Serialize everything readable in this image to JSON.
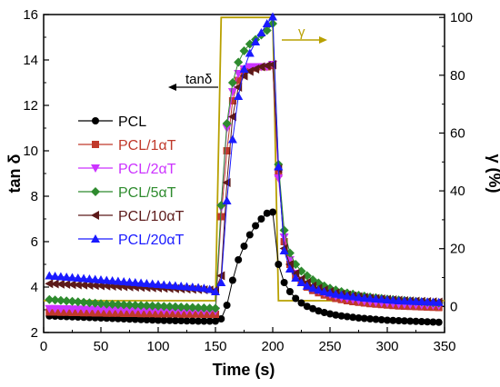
{
  "chart_data": {
    "type": "scatter",
    "xlabel": "Time (s)",
    "ylabel_left": "tan δ",
    "ylabel_right": "γ (%)",
    "xlim": [
      0,
      350
    ],
    "ylim_left": [
      2,
      16
    ],
    "ylim_right": [
      -9,
      101
    ],
    "x_ticks": [
      0,
      50,
      100,
      150,
      200,
      250,
      300,
      350
    ],
    "y_left_ticks": [
      2,
      4,
      6,
      8,
      10,
      12,
      14,
      16
    ],
    "y_right_ticks": [
      0,
      20,
      40,
      60,
      80,
      100
    ],
    "grid": false,
    "legend_position": "left",
    "series": [
      {
        "name": "PCL",
        "axis": "left",
        "color": "#000000",
        "marker": "circle",
        "x": [
          5,
          10,
          15,
          20,
          25,
          30,
          35,
          40,
          45,
          50,
          55,
          60,
          65,
          70,
          75,
          80,
          85,
          90,
          95,
          100,
          105,
          110,
          115,
          120,
          125,
          130,
          135,
          140,
          145,
          150,
          155,
          160,
          165,
          170,
          175,
          180,
          185,
          190,
          195,
          200,
          205,
          210,
          215,
          220,
          225,
          230,
          235,
          240,
          245,
          250,
          255,
          260,
          265,
          270,
          275,
          280,
          285,
          290,
          295,
          300,
          305,
          310,
          315,
          320,
          325,
          330,
          335,
          340,
          345
        ],
        "y": [
          2.73,
          2.72,
          2.71,
          2.7,
          2.69,
          2.68,
          2.67,
          2.66,
          2.65,
          2.64,
          2.63,
          2.62,
          2.61,
          2.6,
          2.59,
          2.58,
          2.57,
          2.56,
          2.55,
          2.54,
          2.53,
          2.53,
          2.52,
          2.52,
          2.51,
          2.51,
          2.5,
          2.5,
          2.5,
          2.5,
          2.6,
          3.2,
          4.3,
          5.2,
          5.8,
          6.3,
          6.7,
          7.0,
          7.25,
          7.3,
          5.0,
          4.2,
          3.8,
          3.5,
          3.3,
          3.15,
          3.05,
          2.95,
          2.88,
          2.82,
          2.77,
          2.73,
          2.7,
          2.67,
          2.64,
          2.62,
          2.6,
          2.58,
          2.56,
          2.54,
          2.53,
          2.52,
          2.51,
          2.5,
          2.49,
          2.48,
          2.47,
          2.46,
          2.45
        ]
      },
      {
        "name": "PCL/1αT",
        "axis": "left",
        "color": "#c0392b",
        "marker": "square",
        "x": [
          5,
          10,
          15,
          20,
          25,
          30,
          35,
          40,
          45,
          50,
          55,
          60,
          65,
          70,
          75,
          80,
          85,
          90,
          95,
          100,
          105,
          110,
          115,
          120,
          125,
          130,
          135,
          140,
          145,
          150,
          155,
          160,
          165,
          170,
          175,
          180,
          185,
          190,
          195,
          200,
          205,
          210,
          215,
          220,
          225,
          230,
          235,
          240,
          245,
          250,
          255,
          260,
          265,
          270,
          275,
          280,
          285,
          290,
          295,
          300,
          305,
          310,
          315,
          320,
          325,
          330,
          335,
          340,
          345
        ],
        "y": [
          2.9,
          2.9,
          2.89,
          2.89,
          2.88,
          2.88,
          2.87,
          2.87,
          2.86,
          2.86,
          2.85,
          2.85,
          2.85,
          2.84,
          2.84,
          2.84,
          2.83,
          2.83,
          2.83,
          2.82,
          2.82,
          2.82,
          2.82,
          2.81,
          2.81,
          2.81,
          2.81,
          2.8,
          2.8,
          2.8,
          7.1,
          10.0,
          12.2,
          13.1,
          13.5,
          13.6,
          13.65,
          13.7,
          13.7,
          13.75,
          9.0,
          6.0,
          5.0,
          4.5,
          4.2,
          4.0,
          3.85,
          3.75,
          3.65,
          3.57,
          3.5,
          3.45,
          3.4,
          3.36,
          3.33,
          3.3,
          3.27,
          3.25,
          3.23,
          3.21,
          3.19,
          3.17,
          3.16,
          3.15,
          3.14,
          3.13,
          3.12,
          3.11,
          3.1
        ]
      },
      {
        "name": "PCL/2αT",
        "axis": "left",
        "color": "#cc33ff",
        "marker": "triangle-down",
        "x": [
          5,
          10,
          15,
          20,
          25,
          30,
          35,
          40,
          45,
          50,
          55,
          60,
          65,
          70,
          75,
          80,
          85,
          90,
          95,
          100,
          105,
          110,
          115,
          120,
          125,
          130,
          135,
          140,
          145,
          150,
          155,
          160,
          165,
          170,
          175,
          180,
          185,
          190,
          195,
          200,
          205,
          210,
          215,
          220,
          225,
          230,
          235,
          240,
          245,
          250,
          255,
          260,
          265,
          270,
          275,
          280,
          285,
          290,
          295,
          300,
          305,
          310,
          315,
          320,
          325,
          330,
          335,
          340,
          345
        ],
        "y": [
          3.05,
          3.05,
          3.04,
          3.04,
          3.03,
          3.03,
          3.02,
          3.02,
          3.01,
          3.01,
          3.0,
          3.0,
          3.0,
          2.99,
          2.99,
          2.99,
          2.98,
          2.98,
          2.98,
          2.97,
          2.97,
          2.97,
          2.97,
          2.96,
          2.96,
          2.96,
          2.96,
          2.95,
          2.95,
          2.95,
          7.5,
          11.0,
          12.6,
          13.4,
          13.6,
          13.7,
          13.7,
          13.7,
          13.7,
          13.8,
          8.8,
          6.2,
          5.2,
          4.6,
          4.3,
          4.1,
          3.95,
          3.85,
          3.75,
          3.67,
          3.6,
          3.54,
          3.49,
          3.45,
          3.41,
          3.38,
          3.35,
          3.33,
          3.31,
          3.29,
          3.27,
          3.25,
          3.24,
          3.23,
          3.22,
          3.21,
          3.2,
          3.19,
          3.18
        ]
      },
      {
        "name": "PCL/5αT",
        "axis": "left",
        "color": "#2e8b2e",
        "marker": "diamond",
        "x": [
          5,
          10,
          15,
          20,
          25,
          30,
          35,
          40,
          45,
          50,
          55,
          60,
          65,
          70,
          75,
          80,
          85,
          90,
          95,
          100,
          105,
          110,
          115,
          120,
          125,
          130,
          135,
          140,
          145,
          150,
          155,
          160,
          165,
          170,
          175,
          180,
          185,
          190,
          195,
          200,
          205,
          210,
          215,
          220,
          225,
          230,
          235,
          240,
          245,
          250,
          255,
          260,
          265,
          270,
          275,
          280,
          285,
          290,
          295,
          300,
          305,
          310,
          315,
          320,
          325,
          330,
          335,
          340,
          345
        ],
        "y": [
          3.45,
          3.43,
          3.41,
          3.39,
          3.37,
          3.35,
          3.33,
          3.31,
          3.29,
          3.27,
          3.25,
          3.24,
          3.23,
          3.22,
          3.21,
          3.2,
          3.19,
          3.18,
          3.17,
          3.16,
          3.15,
          3.14,
          3.13,
          3.12,
          3.11,
          3.1,
          3.09,
          3.08,
          3.07,
          3.06,
          7.6,
          11.2,
          13.0,
          13.9,
          14.4,
          14.7,
          14.9,
          15.1,
          15.3,
          15.6,
          9.4,
          6.5,
          5.5,
          5.0,
          4.7,
          4.5,
          4.32,
          4.18,
          4.05,
          3.95,
          3.87,
          3.8,
          3.74,
          3.69,
          3.64,
          3.6,
          3.56,
          3.53,
          3.5,
          3.47,
          3.45,
          3.43,
          3.41,
          3.39,
          3.37,
          3.35,
          3.33,
          3.31,
          3.3
        ]
      },
      {
        "name": "PCL/10αT",
        "axis": "left",
        "color": "#5c1a1a",
        "marker": "triangle-left",
        "x": [
          5,
          10,
          15,
          20,
          25,
          30,
          35,
          40,
          45,
          50,
          55,
          60,
          65,
          70,
          75,
          80,
          85,
          90,
          95,
          100,
          105,
          110,
          115,
          120,
          125,
          130,
          135,
          140,
          145,
          150,
          155,
          160,
          165,
          170,
          175,
          180,
          185,
          190,
          195,
          200,
          205,
          210,
          215,
          220,
          225,
          230,
          235,
          240,
          245,
          250,
          255,
          260,
          265,
          270,
          275,
          280,
          285,
          290,
          295,
          300,
          305,
          310,
          315,
          320,
          325,
          330,
          335,
          340,
          345
        ],
        "y": [
          4.15,
          4.14,
          4.13,
          4.12,
          4.11,
          4.1,
          4.09,
          4.08,
          4.07,
          4.06,
          4.05,
          4.04,
          4.03,
          4.02,
          4.01,
          4.0,
          3.99,
          3.98,
          3.97,
          3.96,
          3.95,
          3.94,
          3.93,
          3.92,
          3.91,
          3.9,
          3.89,
          3.88,
          3.87,
          3.86,
          4.5,
          8.6,
          11.5,
          12.8,
          13.3,
          13.5,
          13.6,
          13.7,
          13.75,
          13.8,
          9.2,
          5.7,
          5.0,
          4.6,
          4.35,
          4.2,
          4.05,
          3.95,
          3.87,
          3.8,
          3.74,
          3.69,
          3.65,
          3.61,
          3.58,
          3.55,
          3.52,
          3.5,
          3.48,
          3.46,
          3.44,
          3.42,
          3.4,
          3.39,
          3.38,
          3.37,
          3.36,
          3.35,
          3.34
        ]
      },
      {
        "name": "PCL/20αT",
        "axis": "left",
        "color": "#1a1aff",
        "marker": "triangle-up",
        "x": [
          5,
          10,
          15,
          20,
          25,
          30,
          35,
          40,
          45,
          50,
          55,
          60,
          65,
          70,
          75,
          80,
          85,
          90,
          95,
          100,
          105,
          110,
          115,
          120,
          125,
          130,
          135,
          140,
          145,
          150,
          155,
          160,
          165,
          170,
          175,
          180,
          185,
          190,
          195,
          200,
          205,
          210,
          215,
          220,
          225,
          230,
          235,
          240,
          245,
          250,
          255,
          260,
          265,
          270,
          275,
          280,
          285,
          290,
          295,
          300,
          305,
          310,
          315,
          320,
          325,
          330,
          335,
          340,
          345
        ],
        "y": [
          4.5,
          4.48,
          4.46,
          4.44,
          4.42,
          4.4,
          4.38,
          4.36,
          4.34,
          4.32,
          4.3,
          4.28,
          4.26,
          4.24,
          4.22,
          4.2,
          4.18,
          4.16,
          4.14,
          4.12,
          4.1,
          4.08,
          4.06,
          4.04,
          4.02,
          4.0,
          3.98,
          3.95,
          3.9,
          3.8,
          4.2,
          7.8,
          10.5,
          12.4,
          13.6,
          14.3,
          14.8,
          15.2,
          15.6,
          15.9,
          9.3,
          5.6,
          4.8,
          4.4,
          4.2,
          4.05,
          3.95,
          3.87,
          3.8,
          3.74,
          3.69,
          3.65,
          3.61,
          3.58,
          3.55,
          3.52,
          3.5,
          3.48,
          3.46,
          3.44,
          3.42,
          3.4,
          3.39,
          3.38,
          3.37,
          3.36,
          3.35,
          3.34,
          3.33
        ]
      },
      {
        "name": "",
        "axis": "right",
        "color": "#b8a000",
        "marker": "none",
        "x": [
          0,
          150,
          155,
          200,
          205,
          350
        ],
        "y": [
          2,
          2,
          100,
          100,
          2,
          2
        ]
      }
    ],
    "annotations": [
      {
        "text": "tanδ",
        "color": "#000000"
      },
      {
        "text": "γ",
        "color": "#b8a000"
      }
    ]
  }
}
